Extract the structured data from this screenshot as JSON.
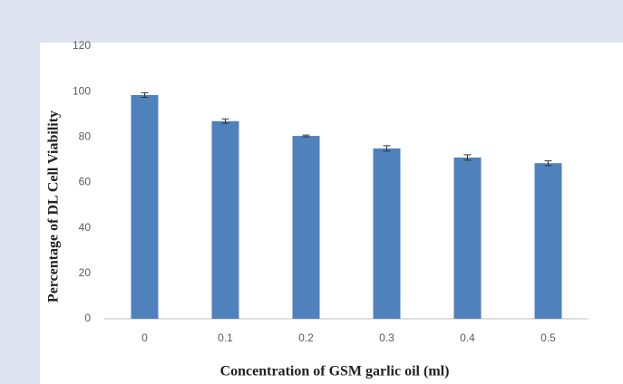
{
  "chart_data": {
    "type": "bar",
    "xlabel": "Concentration  of GSM garlic  oil (ml)",
    "ylabel": "Percentage of DL Cell Viability",
    "categories": [
      "0",
      "0.1",
      "0.2",
      "0.3",
      "0.4",
      "0.5"
    ],
    "values": [
      98.5,
      87,
      80.5,
      75,
      71,
      68.5
    ],
    "errors": [
      1,
      1,
      0.4,
      1.2,
      1.2,
      1
    ],
    "color": "#4f81bd",
    "ylim": [
      0,
      120
    ],
    "yticks": [
      0,
      20,
      40,
      60,
      80,
      100,
      120
    ],
    "grid": false
  }
}
